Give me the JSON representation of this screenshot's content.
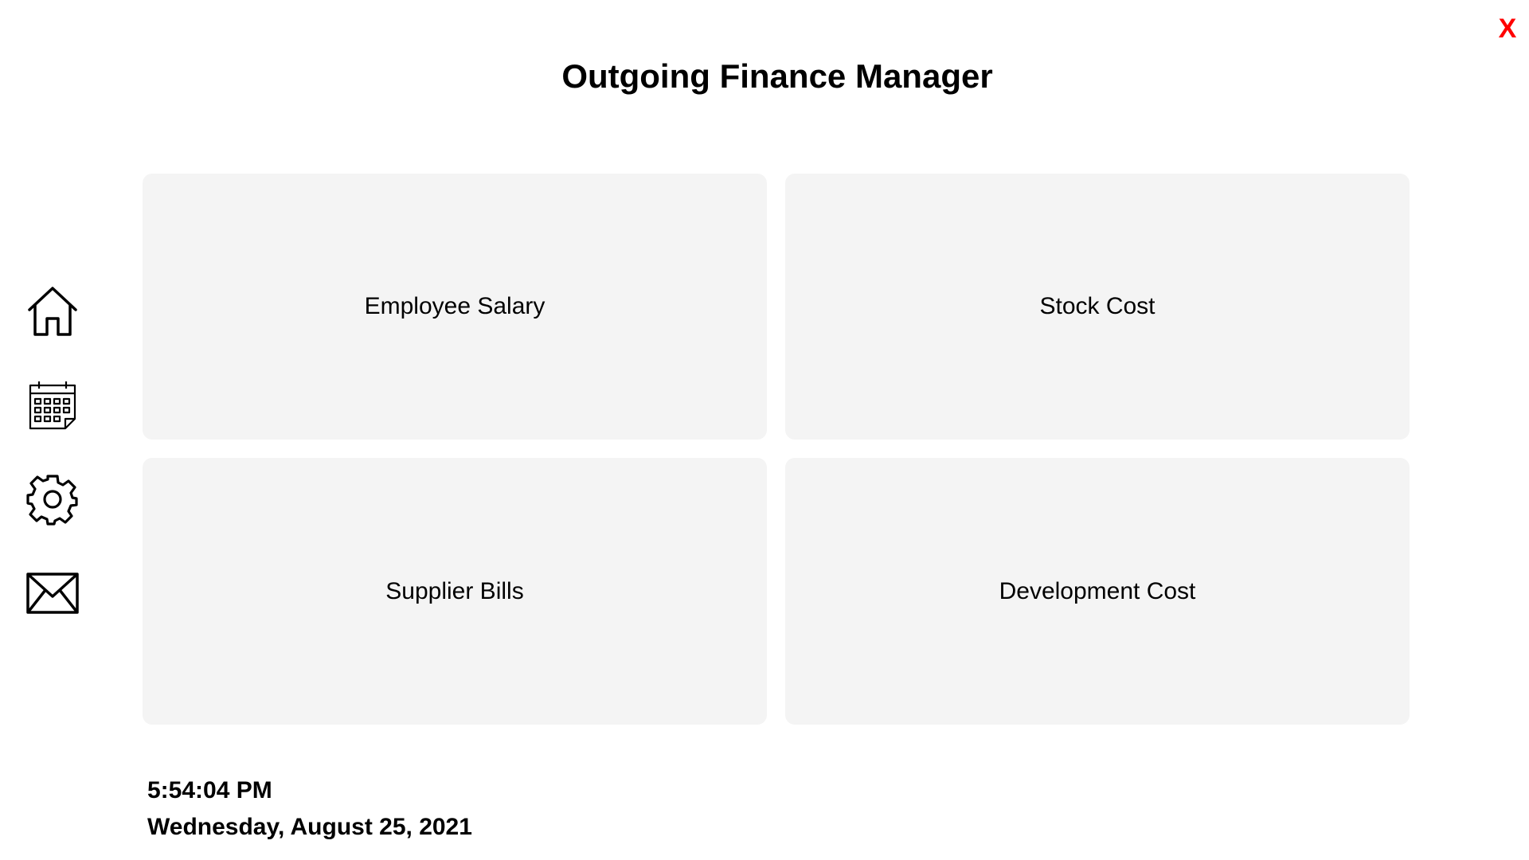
{
  "window": {
    "title": "Outgoing Finance Manager",
    "close_label": "X",
    "close_color": "#ff0000"
  },
  "sidebar": {
    "items": [
      {
        "icon": "home-icon"
      },
      {
        "icon": "calendar-icon"
      },
      {
        "icon": "gear-icon"
      },
      {
        "icon": "mail-icon"
      }
    ]
  },
  "tiles": [
    {
      "label": "Employee Salary"
    },
    {
      "label": "Stock Cost"
    },
    {
      "label": "Supplier Bills"
    },
    {
      "label": "Development Cost"
    }
  ],
  "clock": {
    "time": "5:54:04 PM",
    "date": "Wednesday, August 25, 2021"
  },
  "colors": {
    "tile_background": "#f4f4f4",
    "page_background": "#ffffff",
    "text": "#000000"
  }
}
